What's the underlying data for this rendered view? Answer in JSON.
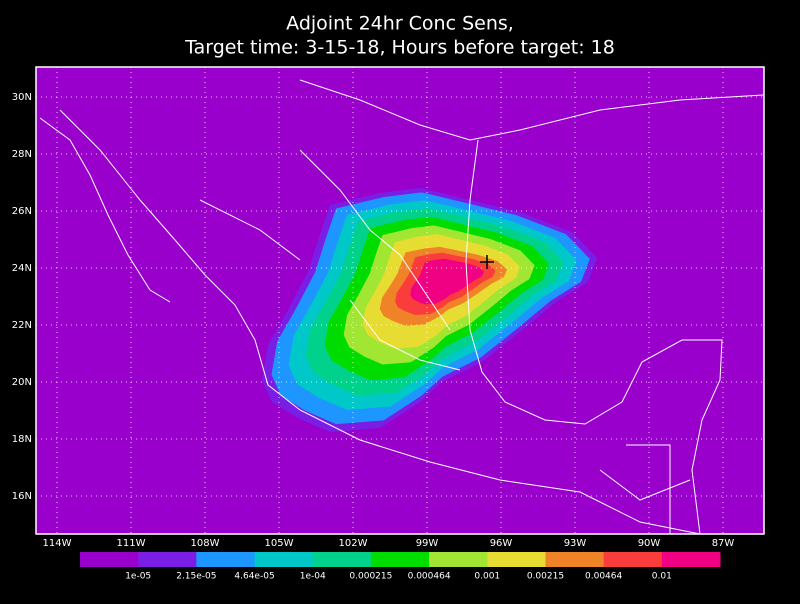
{
  "title": {
    "line1": "Adjoint 24hr Conc Sens,",
    "line2": "Target time: 3-15-18, Hours before target: 18"
  },
  "lat_labels": [
    "30N",
    "28N",
    "26N",
    "24N",
    "22N",
    "20N",
    "18N",
    "16N"
  ],
  "lon_labels": [
    "114W",
    "111W",
    "108W",
    "105W",
    "102W",
    "99W",
    "96W",
    "93W",
    "90W",
    "87W"
  ],
  "colorbar": {
    "colors": [
      "#9a00cc",
      "#7a1ee6",
      "#1e96ff",
      "#00c8c8",
      "#00d28c",
      "#00dc00",
      "#a0e632",
      "#e6dc32",
      "#f08228",
      "#fa3c3c",
      "#f00082"
    ],
    "labels": [
      "1e-05",
      "2.15e-05",
      "4.64e-05",
      "1e-04",
      "0.000215",
      "0.000464",
      "0.001",
      "0.00215",
      "0.00464",
      "0.01"
    ]
  }
}
